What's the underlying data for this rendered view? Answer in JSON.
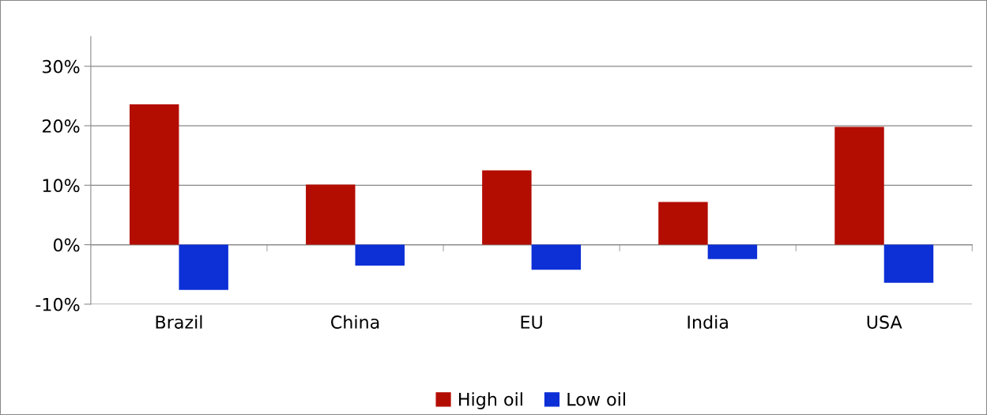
{
  "chart_data": {
    "type": "bar",
    "categories": [
      "Brazil",
      "China",
      "EU",
      "India",
      "USA"
    ],
    "series": [
      {
        "name": "High oil",
        "color": "#b30c00",
        "values": [
          23.6,
          10.1,
          12.5,
          7.2,
          19.8
        ]
      },
      {
        "name": "Low oil",
        "color": "#0c2fd6",
        "values": [
          -7.6,
          -3.5,
          -4.2,
          -2.4,
          -6.4
        ]
      }
    ],
    "ylim": [
      -10,
      35
    ],
    "yticks": [
      {
        "value": -10,
        "label": "-10%"
      },
      {
        "value": 0,
        "label": "0%"
      },
      {
        "value": 10,
        "label": "10%"
      },
      {
        "value": 20,
        "label": "20%"
      },
      {
        "value": 30,
        "label": "30%"
      }
    ],
    "grid": "y",
    "legend": "bottom"
  }
}
